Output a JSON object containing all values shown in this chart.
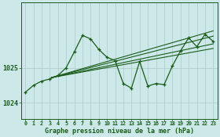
{
  "bg_color": "#cce8e8",
  "grid_color": "#aacccc",
  "line_color": "#1a5c1a",
  "text_color": "#1a5c1a",
  "xlabel": "Graphe pression niveau de la mer (hPa)",
  "ylabel_ticks": [
    1024,
    1025
  ],
  "xlim": [
    -0.5,
    23.5
  ],
  "ylim": [
    1023.55,
    1026.85
  ],
  "main_series": [
    0,
    1,
    2,
    3,
    4,
    5,
    6,
    7,
    8,
    9,
    10,
    11,
    12,
    13,
    14,
    15,
    16,
    17,
    18,
    19,
    20,
    21,
    22,
    23
  ],
  "main_values": [
    1024.3,
    1024.5,
    1024.62,
    1024.68,
    1024.78,
    1025.0,
    1025.45,
    1025.92,
    1025.82,
    1025.52,
    1025.3,
    1025.2,
    1024.55,
    1024.42,
    1025.18,
    1024.48,
    1024.55,
    1024.52,
    1025.05,
    1025.48,
    1025.85,
    1025.6,
    1025.95,
    1025.75
  ],
  "trend_lines": [
    {
      "x": [
        3.2,
        23
      ],
      "y": [
        1024.72,
        1025.55
      ]
    },
    {
      "x": [
        3.2,
        23
      ],
      "y": [
        1024.72,
        1025.68
      ]
    },
    {
      "x": [
        3.2,
        23
      ],
      "y": [
        1024.72,
        1025.9
      ]
    },
    {
      "x": [
        3.2,
        23
      ],
      "y": [
        1024.72,
        1026.05
      ]
    }
  ],
  "xtick_labels": [
    "0",
    "1",
    "2",
    "3",
    "4",
    "5",
    "6",
    "7",
    "8",
    "9",
    "10",
    "11",
    "12",
    "13",
    "14",
    "15",
    "16",
    "17",
    "18",
    "19",
    "20",
    "21",
    "22",
    "23"
  ],
  "figsize": [
    2.8,
    1.75
  ],
  "dpi": 100
}
